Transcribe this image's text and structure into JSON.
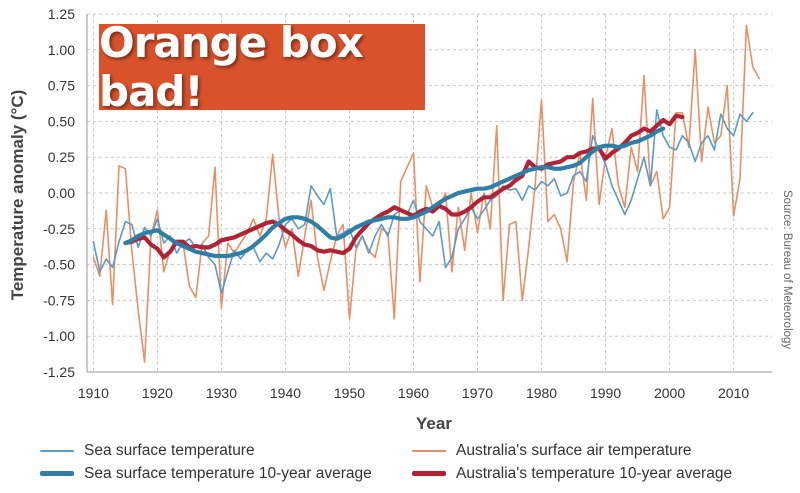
{
  "banner": {
    "text": "Orange box bad!",
    "color": "#d9522b"
  },
  "source_text": "Source: Bureau of Meteorology",
  "chart_data": {
    "type": "line",
    "title": "",
    "xlabel": "Year",
    "ylabel": "Temperature anomaly (°C)",
    "xlim": [
      1909,
      2016
    ],
    "ylim": [
      -1.25,
      1.25
    ],
    "x_ticks": [
      1910,
      1920,
      1930,
      1940,
      1950,
      1960,
      1970,
      1980,
      1990,
      2000,
      2010
    ],
    "y_ticks": [
      -1.25,
      -1.0,
      -0.75,
      -0.5,
      -0.25,
      0.0,
      0.25,
      0.5,
      0.75,
      1.0,
      1.25
    ],
    "y_tick_labels": [
      "-1.25",
      "-1.00",
      "-0.75",
      "-0.50",
      "-0.25",
      "0.00",
      "0.25",
      "0.50",
      "0.75",
      "1.00",
      "1.25"
    ],
    "grid": true,
    "legend_position": "bottom",
    "series": [
      {
        "name": "Sea surface temperature",
        "color": "#5b9bc4",
        "style": "thin",
        "x_start": 1910,
        "values": [
          -0.34,
          -0.55,
          -0.46,
          -0.52,
          -0.34,
          -0.2,
          -0.22,
          -0.38,
          -0.24,
          -0.3,
          -0.18,
          -0.35,
          -0.3,
          -0.42,
          -0.35,
          -0.32,
          -0.38,
          -0.36,
          -0.45,
          -0.5,
          -0.7,
          -0.55,
          -0.4,
          -0.46,
          -0.4,
          -0.38,
          -0.48,
          -0.42,
          -0.46,
          -0.36,
          -0.22,
          -0.18,
          -0.25,
          -0.22,
          0.05,
          -0.02,
          -0.08,
          0.03,
          -0.3,
          -0.28,
          -0.25,
          -0.38,
          -0.3,
          -0.42,
          -0.3,
          -0.22,
          -0.3,
          -0.15,
          -0.12,
          -0.15,
          -0.05,
          -0.2,
          -0.25,
          -0.3,
          -0.2,
          -0.52,
          -0.45,
          -0.25,
          -0.18,
          -0.1,
          -0.18,
          -0.12,
          -0.05,
          -0.02,
          0.05,
          0.02,
          0.03,
          -0.05,
          0.05,
          0.02,
          0.08,
          0.05,
          0.1,
          -0.02,
          0.0,
          0.12,
          0.15,
          0.08,
          0.4,
          0.3,
          0.2,
          0.05,
          -0.05,
          -0.15,
          -0.05,
          0.1,
          0.25,
          0.05,
          0.58,
          0.4,
          0.32,
          0.3,
          0.4,
          0.35,
          0.22,
          0.35,
          0.4,
          0.3,
          0.55,
          0.45,
          0.4,
          0.55,
          0.5,
          0.56
        ]
      },
      {
        "name": "Sea surface temperature 10-year average",
        "color": "#2e7ea6",
        "style": "thick",
        "x_start": 1915,
        "values": [
          -0.35,
          -0.33,
          -0.3,
          -0.28,
          -0.27,
          -0.26,
          -0.29,
          -0.32,
          -0.35,
          -0.37,
          -0.39,
          -0.41,
          -0.42,
          -0.43,
          -0.44,
          -0.44,
          -0.44,
          -0.43,
          -0.42,
          -0.4,
          -0.37,
          -0.33,
          -0.29,
          -0.24,
          -0.21,
          -0.18,
          -0.17,
          -0.17,
          -0.18,
          -0.2,
          -0.23,
          -0.27,
          -0.31,
          -0.32,
          -0.3,
          -0.27,
          -0.24,
          -0.22,
          -0.2,
          -0.19,
          -0.18,
          -0.17,
          -0.17,
          -0.18,
          -0.18,
          -0.17,
          -0.15,
          -0.13,
          -0.1,
          -0.07,
          -0.04,
          -0.02,
          0.0,
          0.01,
          0.02,
          0.03,
          0.03,
          0.04,
          0.06,
          0.08,
          0.1,
          0.12,
          0.14,
          0.16,
          0.17,
          0.18,
          0.18,
          0.17,
          0.17,
          0.18,
          0.19,
          0.21,
          0.25,
          0.29,
          0.32,
          0.33,
          0.33,
          0.32,
          0.33,
          0.35,
          0.36,
          0.38,
          0.4,
          0.43,
          0.45
        ]
      },
      {
        "name": "Australia's surface air temperature",
        "color": "#e88f66",
        "style": "thin",
        "x_start": 1910,
        "values": [
          -0.45,
          -0.58,
          -0.12,
          -0.78,
          0.19,
          0.17,
          -0.4,
          -0.82,
          -1.18,
          -0.3,
          -0.12,
          -0.55,
          -0.4,
          -0.35,
          -0.35,
          -0.65,
          -0.73,
          -0.35,
          -0.3,
          0.18,
          -0.8,
          -0.35,
          -0.42,
          -0.35,
          -0.28,
          -0.18,
          -0.3,
          -0.18,
          0.27,
          -0.18,
          -0.38,
          -0.25,
          -0.58,
          -0.3,
          -0.05,
          -0.45,
          -0.68,
          -0.48,
          -0.3,
          -0.22,
          -0.88,
          -0.4,
          -0.3,
          -0.4,
          -0.45,
          -0.25,
          -0.28,
          -0.88,
          0.08,
          0.18,
          0.28,
          -0.62,
          0.05,
          -0.1,
          -0.1,
          0.0,
          -0.55,
          -0.1,
          -0.4,
          0.0,
          -0.28,
          0.0,
          -0.25,
          0.47,
          -0.75,
          -0.22,
          -0.2,
          -0.75,
          -0.38,
          0.05,
          0.65,
          -0.2,
          -0.15,
          -0.25,
          -0.48,
          0.08,
          0.28,
          -0.05,
          0.66,
          -0.08,
          0.25,
          0.45,
          0.05,
          -0.1,
          0.32,
          0.15,
          0.82,
          0.05,
          0.15,
          -0.18,
          -0.1,
          0.56,
          0.56,
          0.32,
          1.0,
          0.22,
          0.6,
          0.35,
          0.4,
          0.75,
          -0.16,
          0.1,
          1.17,
          0.88,
          0.8
        ]
      },
      {
        "name": "Australia's temperature 10-year average",
        "color": "#b22234",
        "style": "thick",
        "x_start": 1915,
        "values": [
          -0.35,
          -0.34,
          -0.32,
          -0.31,
          -0.36,
          -0.39,
          -0.45,
          -0.41,
          -0.34,
          -0.34,
          -0.38,
          -0.37,
          -0.38,
          -0.38,
          -0.36,
          -0.33,
          -0.32,
          -0.31,
          -0.29,
          -0.27,
          -0.25,
          -0.23,
          -0.21,
          -0.2,
          -0.22,
          -0.26,
          -0.29,
          -0.33,
          -0.36,
          -0.37,
          -0.4,
          -0.41,
          -0.4,
          -0.41,
          -0.42,
          -0.39,
          -0.31,
          -0.26,
          -0.21,
          -0.18,
          -0.15,
          -0.13,
          -0.1,
          -0.12,
          -0.14,
          -0.16,
          -0.13,
          -0.11,
          -0.13,
          -0.09,
          -0.11,
          -0.15,
          -0.15,
          -0.13,
          -0.1,
          -0.06,
          -0.03,
          -0.03,
          0.0,
          0.03,
          0.05,
          0.09,
          0.12,
          0.22,
          0.18,
          0.17,
          0.2,
          0.21,
          0.22,
          0.25,
          0.25,
          0.28,
          0.29,
          0.31,
          0.31,
          0.24,
          0.28,
          0.31,
          0.35,
          0.4,
          0.42,
          0.45,
          0.43,
          0.47,
          0.51,
          0.48,
          0.54,
          0.53
        ]
      }
    ]
  }
}
